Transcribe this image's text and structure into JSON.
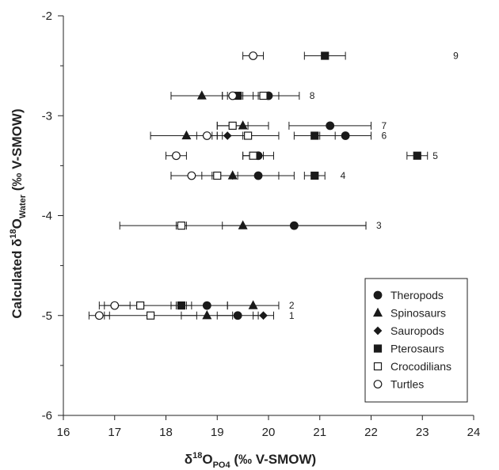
{
  "chart_data": {
    "type": "scatter",
    "title": "",
    "xlabel": {
      "prefix": "δ",
      "sup": "18",
      "main": "O",
      "sub": "PO4",
      "suffix": " (‰ V-SMOW)"
    },
    "ylabel": {
      "prefix": "Calculated δ",
      "sup": "18",
      "main": "O",
      "sub": "Water",
      "suffix": " (‰ V-SMOW)"
    },
    "xlim": [
      16,
      24
    ],
    "ylim": [
      -6,
      -2
    ],
    "xticks": [
      "16",
      "17",
      "18",
      "19",
      "20",
      "21",
      "22",
      "23",
      "24"
    ],
    "yticks": [
      "-2",
      "-3",
      "-4",
      "-5",
      "-6"
    ],
    "grid": false,
    "legend_position": "bottom-right",
    "series": [
      {
        "name": "Theropods",
        "marker": "circle",
        "filled": true,
        "points": [
          {
            "x": 20.5,
            "y": -4.1,
            "err": 1.4
          },
          {
            "x": 19.8,
            "y": -3.6,
            "err": 0.4
          },
          {
            "x": 19.8,
            "y": -3.4,
            "err": 0.3
          },
          {
            "x": 21.5,
            "y": -3.2,
            "err": 0.5
          },
          {
            "x": 21.2,
            "y": -3.1,
            "err": 0.8
          },
          {
            "x": 20.0,
            "y": -2.8,
            "err": 0.2
          },
          {
            "x": 18.8,
            "y": -4.9,
            "err": 0.4
          },
          {
            "x": 19.4,
            "y": -5.0,
            "err": 0.4
          }
        ]
      },
      {
        "name": "Spinosaurs",
        "marker": "triangle",
        "filled": true,
        "points": [
          {
            "x": 19.5,
            "y": -4.1,
            "err": 2.4
          },
          {
            "x": 19.3,
            "y": -3.6,
            "err": 1.2
          },
          {
            "x": 18.4,
            "y": -3.2,
            "err": 0.7
          },
          {
            "x": 19.5,
            "y": -3.1,
            "err": 0.5
          },
          {
            "x": 18.7,
            "y": -2.8,
            "err": 0.6
          },
          {
            "x": 19.7,
            "y": -4.9,
            "err": 0.5
          },
          {
            "x": 18.8,
            "y": -5.0,
            "err": 0.5
          }
        ]
      },
      {
        "name": "Sauropods",
        "marker": "diamond",
        "filled": true,
        "points": [
          {
            "x": 19.2,
            "y": -3.2,
            "err": 0.3
          },
          {
            "x": 19.9,
            "y": -5.0,
            "err": 0.2
          }
        ]
      },
      {
        "name": "Pterosaurs",
        "marker": "square",
        "filled": true,
        "points": [
          {
            "x": 21.1,
            "y": -2.4,
            "err": 0.4
          },
          {
            "x": 19.4,
            "y": -2.8,
            "err": 0.3
          },
          {
            "x": 20.9,
            "y": -3.2,
            "err": 0.4
          },
          {
            "x": 22.9,
            "y": -3.4,
            "err": 0.2
          },
          {
            "x": 20.9,
            "y": -3.6,
            "err": 0.2
          },
          {
            "x": 18.3,
            "y": -4.9,
            "err": 0.2
          }
        ]
      },
      {
        "name": "Crocodilians",
        "marker": "square",
        "filled": false,
        "points": [
          {
            "x": 19.9,
            "y": -2.8,
            "err": 0.7
          },
          {
            "x": 19.3,
            "y": -3.1,
            "err": 0.3
          },
          {
            "x": 19.6,
            "y": -3.2,
            "err": 0.6
          },
          {
            "x": 19.7,
            "y": -3.4,
            "err": 0.2
          },
          {
            "x": 19.0,
            "y": -3.6,
            "err": 0.3
          },
          {
            "x": 18.3,
            "y": -4.1,
            "err": 0.1
          },
          {
            "x": 17.5,
            "y": -4.9,
            "err": 0.7
          },
          {
            "x": 17.7,
            "y": -5.0,
            "err": 0.9
          }
        ]
      },
      {
        "name": "Turtles",
        "marker": "circle",
        "filled": false,
        "points": [
          {
            "x": 19.7,
            "y": -2.4,
            "err": 0.2
          },
          {
            "x": 19.3,
            "y": -2.8,
            "err": 0.2
          },
          {
            "x": 18.8,
            "y": -3.2,
            "err": 0.2
          },
          {
            "x": 18.2,
            "y": -3.4,
            "err": 0.2
          },
          {
            "x": 18.5,
            "y": -3.6,
            "err": 0.4
          },
          {
            "x": 17.0,
            "y": -4.9,
            "err": 0.3
          },
          {
            "x": 16.7,
            "y": -5.0,
            "err": 0.2
          }
        ]
      }
    ],
    "row_labels": [
      {
        "label": "9",
        "x": 23.6,
        "y": -2.4
      },
      {
        "label": "8",
        "x": 20.8,
        "y": -2.8
      },
      {
        "label": "7",
        "x": 22.2,
        "y": -3.1
      },
      {
        "label": "6",
        "x": 22.2,
        "y": -3.2
      },
      {
        "label": "5",
        "x": 23.2,
        "y": -3.4
      },
      {
        "label": "4",
        "x": 21.4,
        "y": -3.6
      },
      {
        "label": "3",
        "x": 22.1,
        "y": -4.1
      },
      {
        "label": "2",
        "x": 20.4,
        "y": -4.9
      },
      {
        "label": "1",
        "x": 20.4,
        "y": -5.0
      }
    ]
  }
}
